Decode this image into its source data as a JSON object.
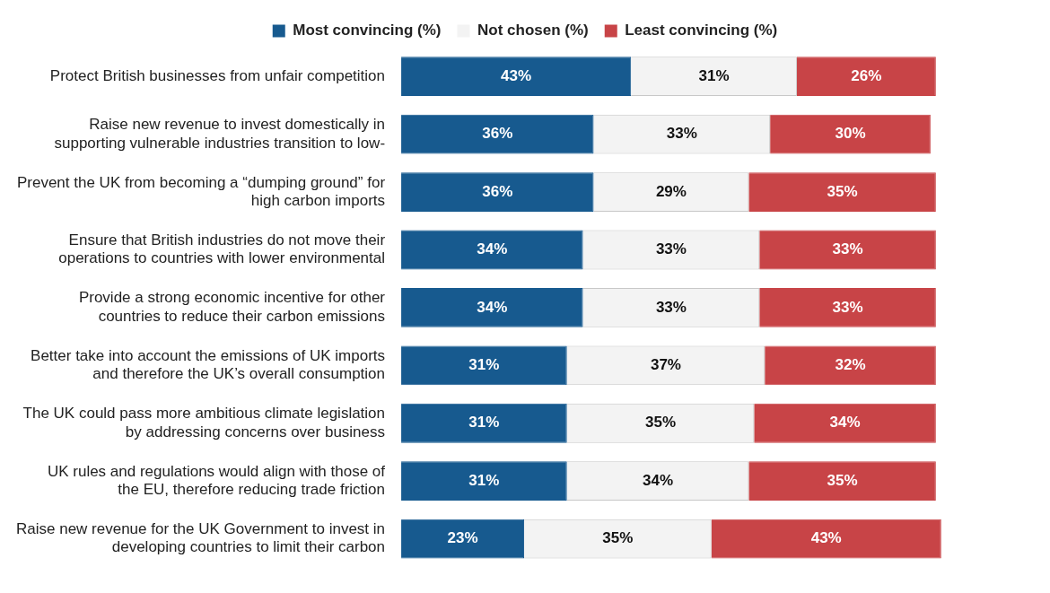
{
  "chart_data": {
    "type": "bar",
    "orientation": "horizontal",
    "stacked": true,
    "legend": "top",
    "categories": [
      "Protect British businesses from unfair competition",
      "Raise new revenue to invest domestically in supporting vulnerable industries transition to low-",
      "Prevent the UK from becoming a “dumping ground” for high carbon imports",
      "Ensure that British industries do not move their operations to countries with lower environmental",
      "Provide a strong economic incentive for other countries to reduce their carbon emissions",
      "Better take into account the emissions of UK imports and therefore the UK’s overall consumption",
      "The UK could pass more ambitious climate legislation by addressing concerns over business",
      "UK rules and regulations would align with those of the EU, therefore reducing trade friction",
      "Raise new revenue for the UK Government to invest in developing countries to limit their carbon"
    ],
    "series": [
      {
        "name": "Most convincing (%)",
        "color": "#175a8f",
        "values": [
          43,
          36,
          36,
          34,
          34,
          31,
          31,
          31,
          23
        ],
        "value_labels": [
          "43%",
          "36%",
          "36%",
          "34%",
          "34%",
          "31%",
          "31%",
          "31%",
          "23%"
        ]
      },
      {
        "name": "Not chosen (%)",
        "color": "#f3f3f3",
        "values": [
          31,
          33,
          29,
          33,
          33,
          37,
          35,
          34,
          35
        ],
        "value_labels": [
          "31%",
          "33%",
          "29%",
          "33%",
          "33%",
          "37%",
          "35%",
          "34%",
          "35%"
        ]
      },
      {
        "name": "Least convincing (%)",
        "color": "#c84447",
        "values": [
          26,
          30,
          35,
          33,
          33,
          32,
          34,
          35,
          43
        ],
        "value_labels": [
          "26%",
          "30%",
          "35%",
          "33%",
          "33%",
          "32%",
          "34%",
          "35%",
          "43%"
        ]
      }
    ]
  }
}
